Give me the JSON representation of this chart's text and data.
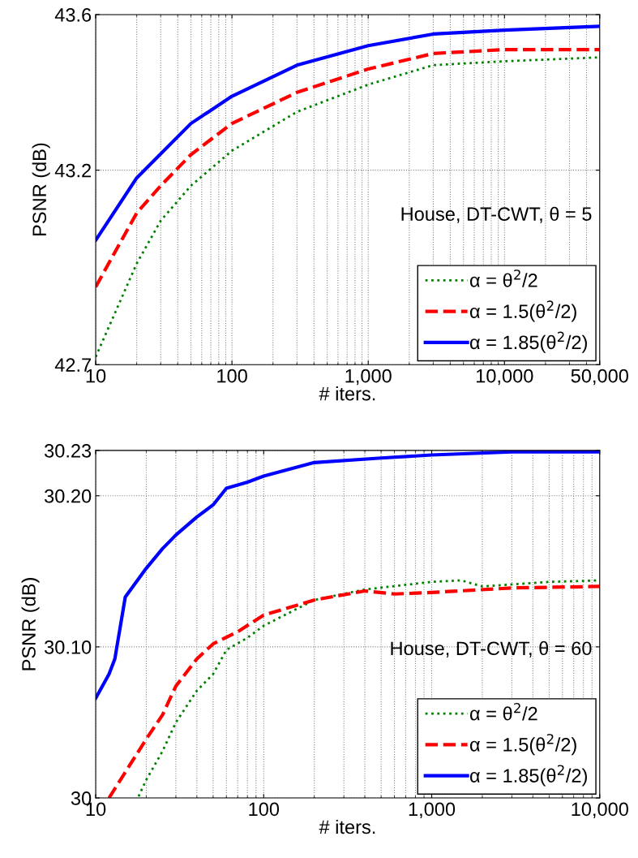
{
  "chart_data": [
    {
      "type": "line",
      "xlabel": "# iters.",
      "ylabel": "PSNR (dB)",
      "log": "x",
      "grid": true,
      "legend": "bottom right",
      "annotations": [
        "House, DT-CWT, θ = 5"
      ],
      "xlim": [
        10,
        50000
      ],
      "xticks": [
        10,
        100,
        {
          "value": 1000,
          "label": "1,000"
        },
        {
          "value": 10000,
          "label": "10,000"
        },
        {
          "value": 50000,
          "label": "50,000"
        }
      ],
      "ylim": [
        42.7,
        43.6
      ],
      "yticks": [
        42.7,
        43.2,
        43.6
      ],
      "series": [
        {
          "name": "α = θ$^{2}$/2",
          "color": "#008000",
          "line_style": "dotted",
          "x": [
            10,
            20,
            30,
            50,
            100,
            300,
            1000,
            3000,
            10000,
            50000
          ],
          "values": [
            42.72,
            42.96,
            43.07,
            43.16,
            43.25,
            43.35,
            43.42,
            43.47,
            43.48,
            43.49
          ]
        },
        {
          "name": "α = 1.5(θ$^{2}$/2)",
          "color": "#ff0000",
          "line_style": "dashed",
          "x": [
            10,
            20,
            30,
            50,
            100,
            300,
            1000,
            3000,
            10000,
            50000
          ],
          "values": [
            42.9,
            43.09,
            43.16,
            43.24,
            43.32,
            43.4,
            43.46,
            43.5,
            43.51,
            43.51
          ]
        },
        {
          "name": "α = 1.85(θ$^{2}$/2)",
          "color": "#0000ff",
          "line_style": "solid",
          "x": [
            10,
            20,
            50,
            100,
            300,
            1000,
            3000,
            10000,
            50000
          ],
          "values": [
            43.02,
            43.18,
            43.32,
            43.39,
            43.47,
            43.52,
            43.55,
            43.56,
            43.57
          ]
        }
      ]
    },
    {
      "type": "line",
      "xlabel": "# iters.",
      "ylabel": "PSNR (dB)",
      "log": "x",
      "grid": true,
      "legend": "bottom right",
      "annotations": [
        "House, DT-CWT, θ = 60"
      ],
      "xlim": [
        10,
        10000
      ],
      "xticks": [
        10,
        100,
        {
          "value": 1000,
          "label": "1,000"
        },
        {
          "value": 10000,
          "label": "10,000"
        }
      ],
      "ylim": [
        30,
        30.23
      ],
      "yticks": [
        30,
        {
          "value": 30.1,
          "label": "30.10"
        },
        {
          "value": 30.2,
          "label": "30.20"
        },
        30.23
      ],
      "series": [
        {
          "name": "α = θ$^{2}$/2",
          "color": "#008000",
          "line_style": "dotted",
          "x": [
            18,
            20,
            25,
            30,
            40,
            50,
            60,
            80,
            100,
            200,
            400,
            1000,
            1500,
            2000,
            5000,
            10000
          ],
          "values": [
            30.001,
            30.012,
            30.031,
            30.05,
            30.071,
            30.082,
            30.098,
            30.106,
            30.114,
            30.131,
            30.138,
            30.143,
            30.144,
            30.14,
            30.143,
            30.144
          ]
        },
        {
          "name": "α = 1.5(θ$^{2}$/2)",
          "color": "#ff0000",
          "line_style": "dashed",
          "x": [
            12,
            15,
            20,
            25,
            30,
            40,
            50,
            70,
            100,
            200,
            400,
            600,
            1000,
            3000,
            10000
          ],
          "values": [
            30.0,
            30.017,
            30.039,
            30.055,
            30.074,
            30.092,
            30.102,
            30.11,
            30.121,
            30.131,
            30.137,
            30.135,
            30.136,
            30.139,
            30.14
          ]
        },
        {
          "name": "α = 1.85(θ$^{2}$/2)",
          "color": "#0000ff",
          "line_style": "solid",
          "x": [
            10,
            12,
            13,
            15,
            20,
            25,
            30,
            40,
            50,
            60,
            80,
            100,
            200,
            500,
            1000,
            3000,
            10000
          ],
          "values": [
            30.066,
            30.082,
            30.092,
            30.133,
            30.152,
            30.165,
            30.174,
            30.186,
            30.194,
            30.205,
            30.209,
            30.213,
            30.222,
            30.225,
            30.227,
            30.229,
            30.229
          ]
        }
      ]
    }
  ]
}
